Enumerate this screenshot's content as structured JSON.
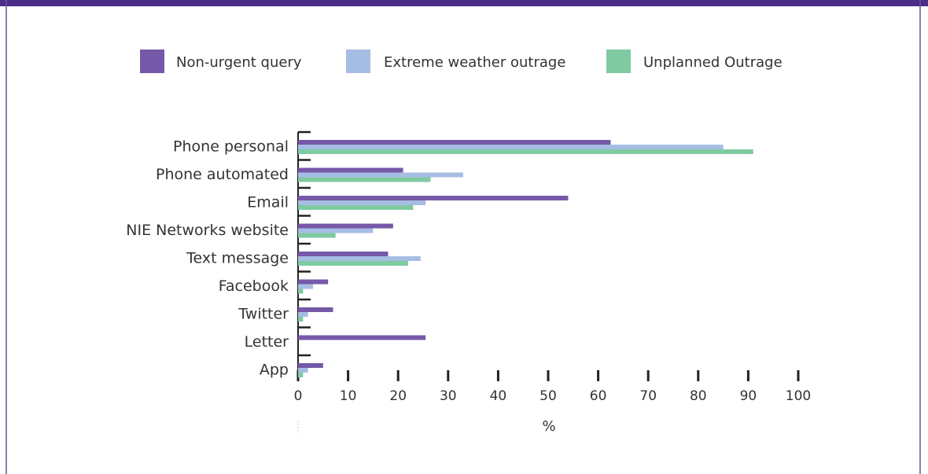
{
  "chart_data": {
    "type": "bar",
    "orientation": "horizontal",
    "categories": [
      "Phone personal",
      "Phone automated",
      "Email",
      "NIE Networks website",
      "Text message",
      "Facebook",
      "Twitter",
      "Letter",
      "App"
    ],
    "series": [
      {
        "name": "Non-urgent query",
        "color": "#7559a8",
        "values": [
          62.5,
          21,
          54,
          19,
          18,
          6,
          7,
          25.5,
          5
        ]
      },
      {
        "name": "Extreme weather outrage",
        "color": "#a6bde3",
        "values": [
          85,
          33,
          25.5,
          15,
          24.5,
          3,
          2,
          0,
          2
        ]
      },
      {
        "name": "Unplanned Outrage",
        "color": "#7fcaa0",
        "values": [
          91,
          26.5,
          23,
          7.5,
          22,
          1,
          1,
          0,
          1
        ]
      }
    ],
    "xlim": [
      0,
      100
    ],
    "xticks": [
      0,
      10,
      20,
      30,
      40,
      50,
      60,
      70,
      80,
      90,
      100
    ],
    "xlabel": "%",
    "legend": "top"
  }
}
